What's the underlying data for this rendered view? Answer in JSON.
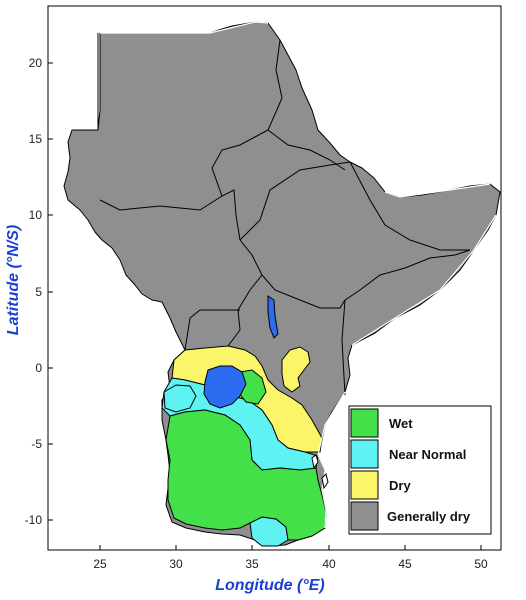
{
  "axes": {
    "x_label": "Longitude (°E)",
    "y_label": "Latitude (°N/S)",
    "x_ticks": [
      "25",
      "30",
      "35",
      "40",
      "45",
      "50"
    ],
    "y_ticks": [
      "20",
      "15",
      "10",
      "5",
      "0",
      "-5",
      "-10"
    ]
  },
  "legend": {
    "items": [
      {
        "label": "Wet",
        "color": "#44e04a"
      },
      {
        "label": "Near Normal",
        "color": "#5ff2f2"
      },
      {
        "label": "Dry",
        "color": "#fbf56a"
      },
      {
        "label": "Generally dry",
        "color": "#8f8f8f"
      }
    ]
  },
  "colors": {
    "land": "#8f8f8f",
    "lake": "#2b6cf0",
    "axis_title": "#1a3fd6"
  }
}
